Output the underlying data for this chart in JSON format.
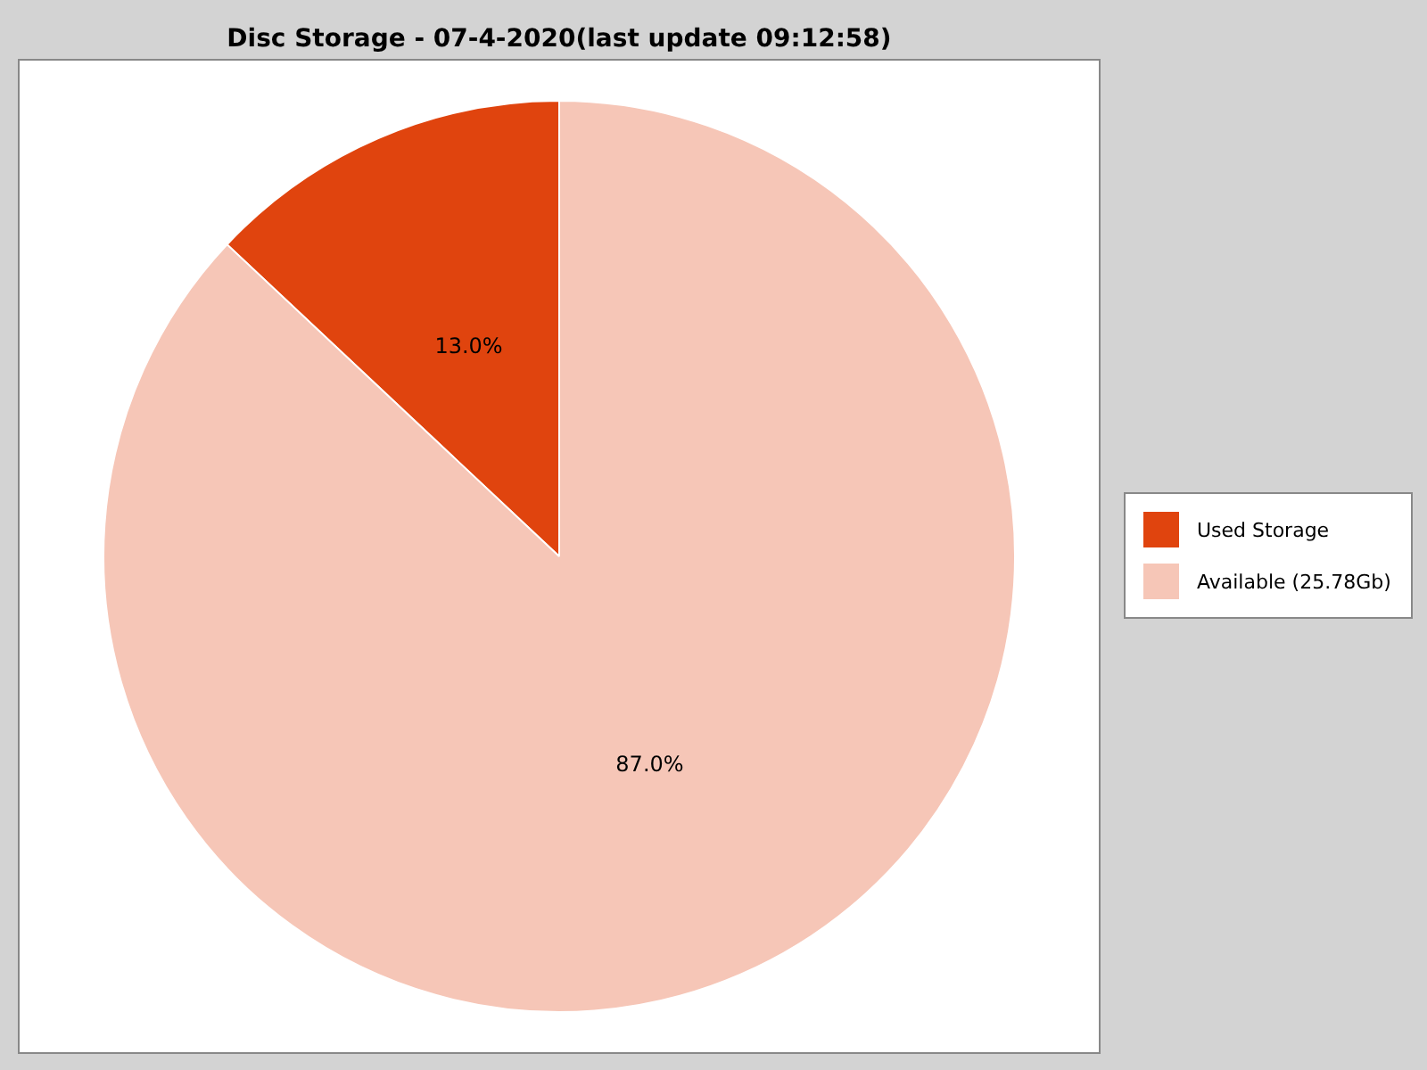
{
  "chart_data": {
    "type": "pie",
    "title": "Disc Storage - 07-4-2020(last update 09:12:58)",
    "categories": [
      "Used Storage",
      "Available (25.78Gb)"
    ],
    "values": [
      13.0,
      87.0
    ],
    "colors": [
      "#e0440e",
      "#f6c6b7"
    ],
    "value_labels": [
      "13.0%",
      "87.0%"
    ],
    "legend": "right"
  }
}
